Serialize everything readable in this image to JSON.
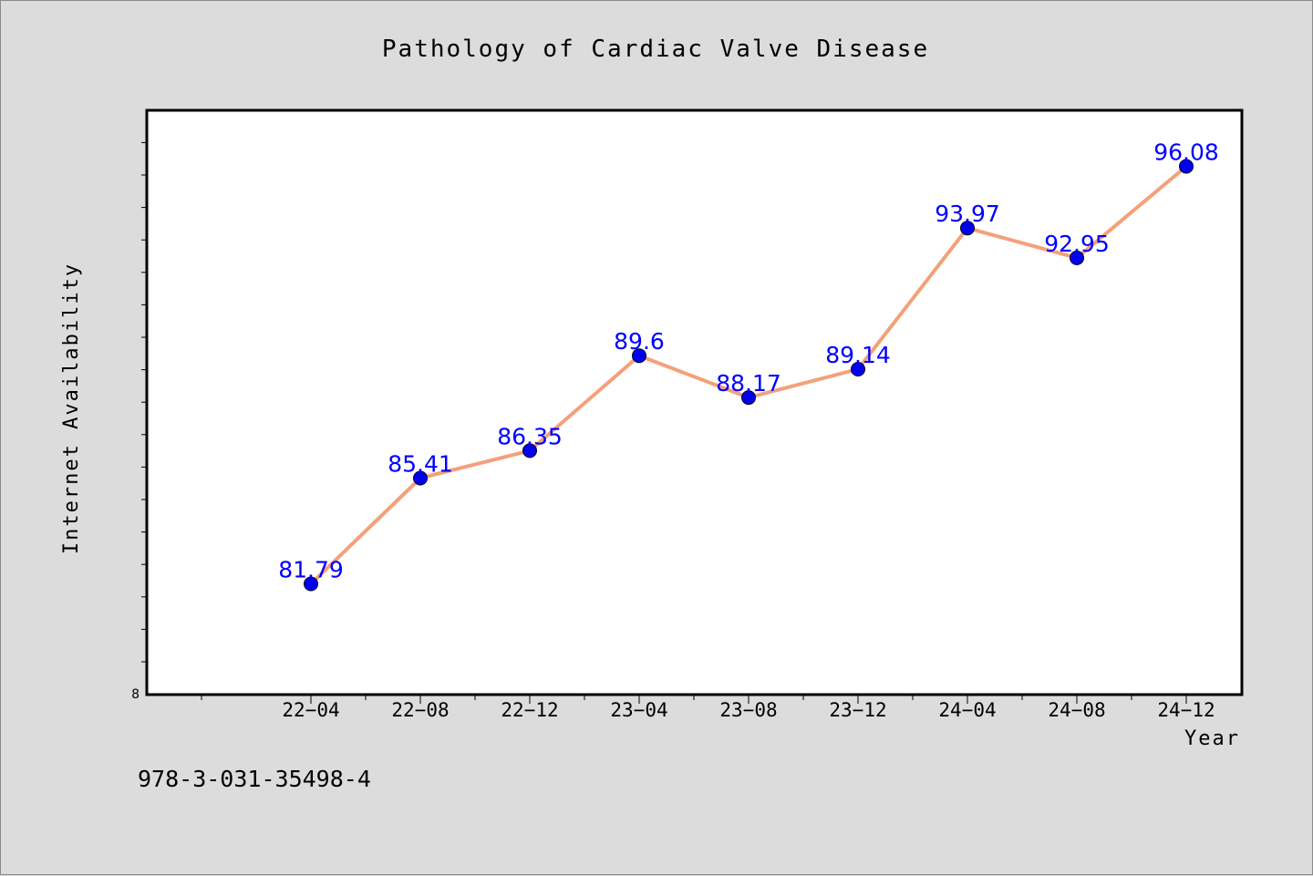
{
  "chart_data": {
    "type": "line",
    "title": "Pathology of Cardiac Valve Disease",
    "xlabel": "Year",
    "ylabel": "Internet Availability",
    "categories": [
      "22-04",
      "22-08",
      "22-12",
      "23-04",
      "23-08",
      "23-12",
      "24-04",
      "24-08",
      "24-12"
    ],
    "x_tick_labels": [
      "22−04",
      "22−08",
      "22−12",
      "23−04",
      "23−08",
      "23−12",
      "24−04",
      "24−08",
      "24−12"
    ],
    "series": [
      {
        "values": [
          81.79,
          85.41,
          86.35,
          89.6,
          88.17,
          89.14,
          93.97,
          92.95,
          96.08
        ],
        "value_labels": [
          "81.79",
          "85.41",
          "86.35",
          "89.6",
          "88.17",
          "89.14",
          "93.97",
          "92.95",
          "96.08"
        ],
        "line_color": "#f4a07a",
        "marker_color": "#0000ee",
        "label_color": "#0000ff"
      }
    ],
    "y_tick_label": "8",
    "ylim": [
      78,
      98
    ],
    "grid": false,
    "legend": "none"
  },
  "footer": {
    "isbn": "978-3-031-35498-4"
  },
  "colors": {
    "background": "#dcdcdc",
    "plot_area": "#ffffff",
    "axis": "#000000"
  }
}
